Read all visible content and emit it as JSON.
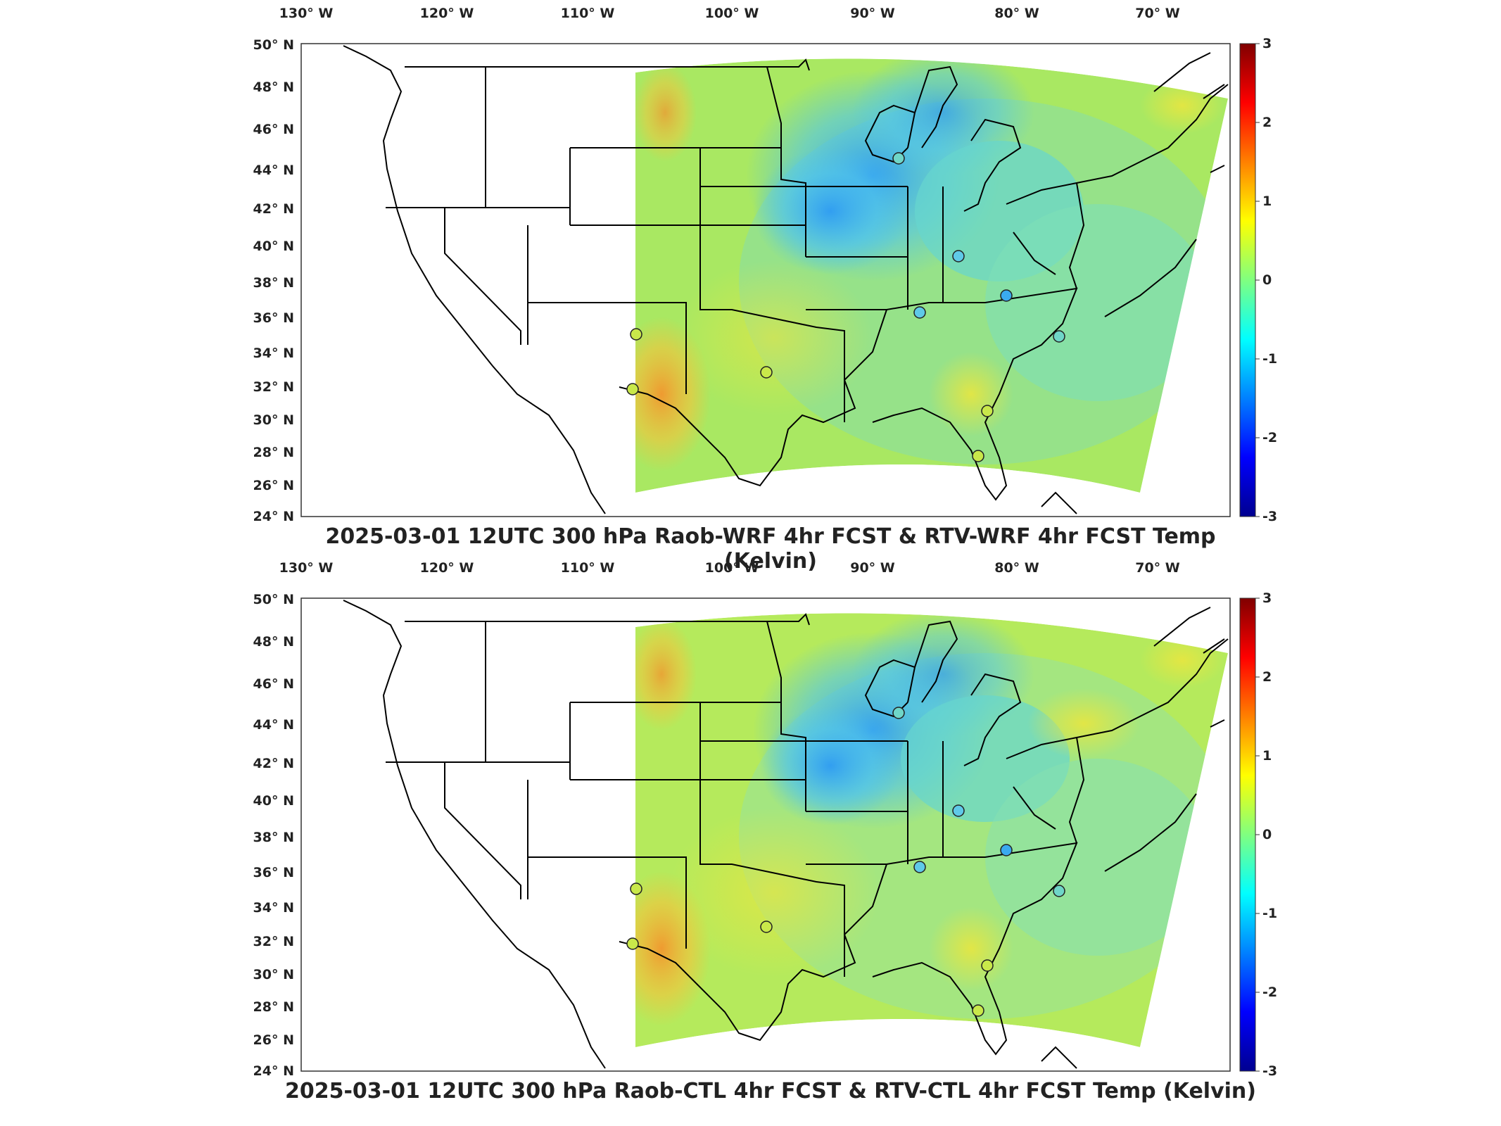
{
  "panels": [
    {
      "title": "2025-03-01 12UTC 300 hPa Raob-WRF 4hr FCST & RTV-WRF 4hr FCST Temp (Kelvin)",
      "lon_labels": [
        "130° W",
        "120° W",
        "110° W",
        "100° W",
        "90° W",
        "80° W",
        "70° W"
      ],
      "lat_labels": [
        "50° N",
        "48° N",
        "46° N",
        "44° N",
        "42° N",
        "40° N",
        "38° N",
        "36° N",
        "34° N",
        "32° N",
        "30° N",
        "28° N",
        "26° N",
        "24° N"
      ],
      "colorbar": {
        "labels": [
          "3",
          "2",
          "1",
          "0",
          "-1",
          "-2",
          "-3"
        ],
        "min": -3,
        "max": 3
      }
    },
    {
      "title": "2025-03-01 12UTC 300 hPa Raob-CTL 4hr FCST & RTV-CTL 4hr FCST Temp (Kelvin)",
      "lon_labels": [
        "130° W",
        "120° W",
        "110° W",
        "100° W",
        "90° W",
        "80° W",
        "70° W"
      ],
      "lat_labels": [
        "50° N",
        "48° N",
        "46° N",
        "44° N",
        "42° N",
        "40° N",
        "38° N",
        "36° N",
        "34° N",
        "32° N",
        "30° N",
        "28° N",
        "26° N",
        "24° N"
      ],
      "colorbar": {
        "labels": [
          "3",
          "2",
          "1",
          "0",
          "-1",
          "-2",
          "-3"
        ],
        "min": -3,
        "max": 3
      }
    }
  ],
  "colors": {
    "colormap": [
      "#00008f",
      "#0000ff",
      "#0080ff",
      "#00ffff",
      "#80ff80",
      "#ffff00",
      "#ff8000",
      "#ff0000",
      "#800000"
    ],
    "land_outline": "#000000"
  }
}
